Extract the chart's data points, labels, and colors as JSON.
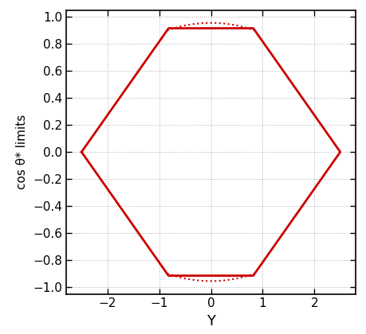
{
  "title": "",
  "xlabel": "Y",
  "ylabel": "cos θ* limits",
  "xlim": [
    -2.8,
    2.8
  ],
  "ylim": [
    -1.05,
    1.05
  ],
  "xticks": [
    -2,
    -1,
    0,
    1,
    2
  ],
  "yticks": [
    -1,
    -0.8,
    -0.6,
    -0.4,
    -0.2,
    0,
    0.2,
    0.4,
    0.6,
    0.8,
    1
  ],
  "solid_color": "#cc0000",
  "dotted_color": "#cc0000",
  "background_color": "#ffffff",
  "grid_color": "#999999",
  "Y_max": 2.5,
  "cos_plateau": 0.915,
  "Y_plateau": 0.82,
  "analytical_cos_max": 0.955,
  "line_width": 2.0
}
